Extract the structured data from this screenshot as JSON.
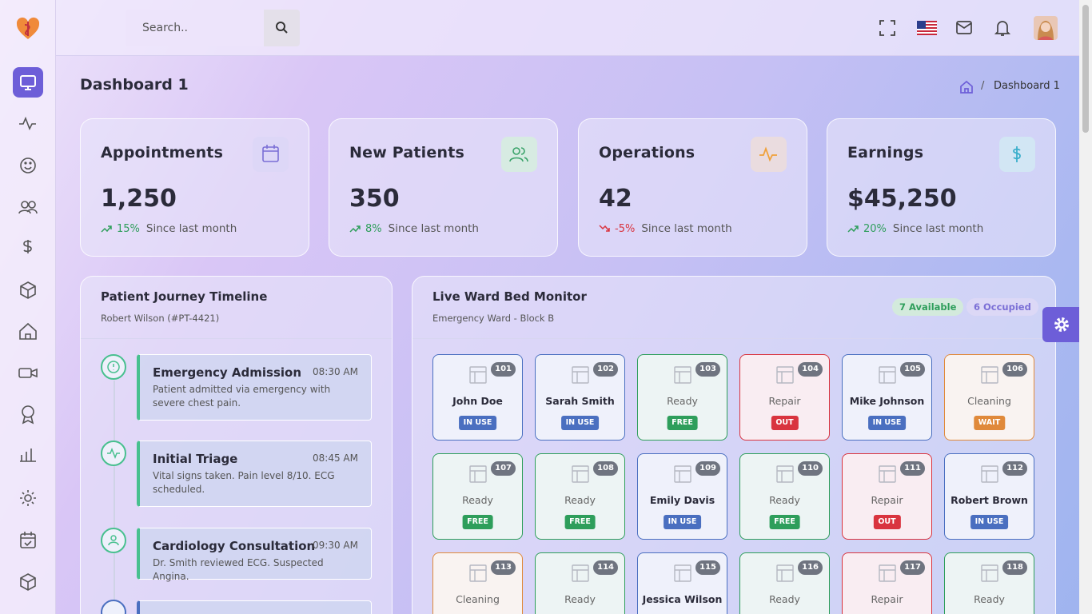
{
  "header": {
    "search_placeholder": "Search.."
  },
  "page": {
    "title": "Dashboard 1",
    "breadcrumb": "Dashboard 1"
  },
  "stats": [
    {
      "label": "Appointments",
      "value": "1,250",
      "change": "15%",
      "note": "Since last month",
      "color": "#7b6fd6",
      "icon_bg": "#ddd7f7",
      "change_color": "#2e9e5b"
    },
    {
      "label": "New Patients",
      "value": "350",
      "change": "8%",
      "note": "Since last month",
      "color": "#3aa36a",
      "icon_bg": "#d7ebe2",
      "change_color": "#2e9e5b"
    },
    {
      "label": "Operations",
      "value": "42",
      "change": "-5%",
      "note": "Since last month",
      "color": "#f0a13a",
      "icon_bg": "#eadcdf",
      "change_color": "#d9343f"
    },
    {
      "label": "Earnings",
      "value": "$45,250",
      "change": "20%",
      "note": "Since last month",
      "color": "#3aaecb",
      "icon_bg": "#d2e6f4",
      "change_color": "#2e9e5b"
    }
  ],
  "timeline": {
    "title": "Patient Journey Timeline",
    "subtitle": "Robert Wilson (#PT-4421)",
    "events": [
      {
        "title": "Emergency Admission",
        "time": "08:30 AM",
        "desc": "Patient admitted via emergency with severe chest pain."
      },
      {
        "title": "Initial Triage",
        "time": "08:45 AM",
        "desc": "Vital signs taken. Pain level 8/10. ECG scheduled."
      },
      {
        "title": "Cardiology Consultation",
        "time": "09:30 AM",
        "desc": "Dr. Smith reviewed ECG. Suspected Angina."
      }
    ]
  },
  "ward": {
    "title": "Live Ward Bed Monitor",
    "subtitle": "Emergency Ward - Block B",
    "available": "7 Available",
    "occupied": "6 Occupied",
    "beds": [
      {
        "number": "101",
        "label": "John Doe",
        "status": "IN USE",
        "color": "#4a6fc0"
      },
      {
        "number": "102",
        "label": "Sarah Smith",
        "status": "IN USE",
        "color": "#4a6fc0"
      },
      {
        "number": "103",
        "label": "Ready",
        "status": "FREE",
        "color": "#2e9e5b"
      },
      {
        "number": "104",
        "label": "Repair",
        "status": "OUT",
        "color": "#d9343f"
      },
      {
        "number": "105",
        "label": "Mike Johnson",
        "status": "IN USE",
        "color": "#4a6fc0"
      },
      {
        "number": "106",
        "label": "Cleaning",
        "status": "WAIT",
        "color": "#e0893a"
      },
      {
        "number": "107",
        "label": "Ready",
        "status": "FREE",
        "color": "#2e9e5b"
      },
      {
        "number": "108",
        "label": "Ready",
        "status": "FREE",
        "color": "#2e9e5b"
      },
      {
        "number": "109",
        "label": "Emily Davis",
        "status": "IN USE",
        "color": "#4a6fc0"
      },
      {
        "number": "110",
        "label": "Ready",
        "status": "FREE",
        "color": "#2e9e5b"
      },
      {
        "number": "111",
        "label": "Repair",
        "status": "OUT",
        "color": "#d9343f"
      },
      {
        "number": "112",
        "label": "Robert Brown",
        "status": "IN USE",
        "color": "#4a6fc0"
      },
      {
        "number": "113",
        "label": "Cleaning",
        "color": "#e0893a"
      },
      {
        "number": "114",
        "label": "Ready",
        "color": "#2e9e5b"
      },
      {
        "number": "115",
        "label": "Jessica Wilson",
        "color": "#4a6fc0"
      },
      {
        "number": "116",
        "label": "Ready",
        "color": "#2e9e5b"
      },
      {
        "number": "117",
        "label": "Repair",
        "color": "#d9343f"
      },
      {
        "number": "118",
        "label": "Ready",
        "color": "#2e9e5b"
      }
    ]
  }
}
